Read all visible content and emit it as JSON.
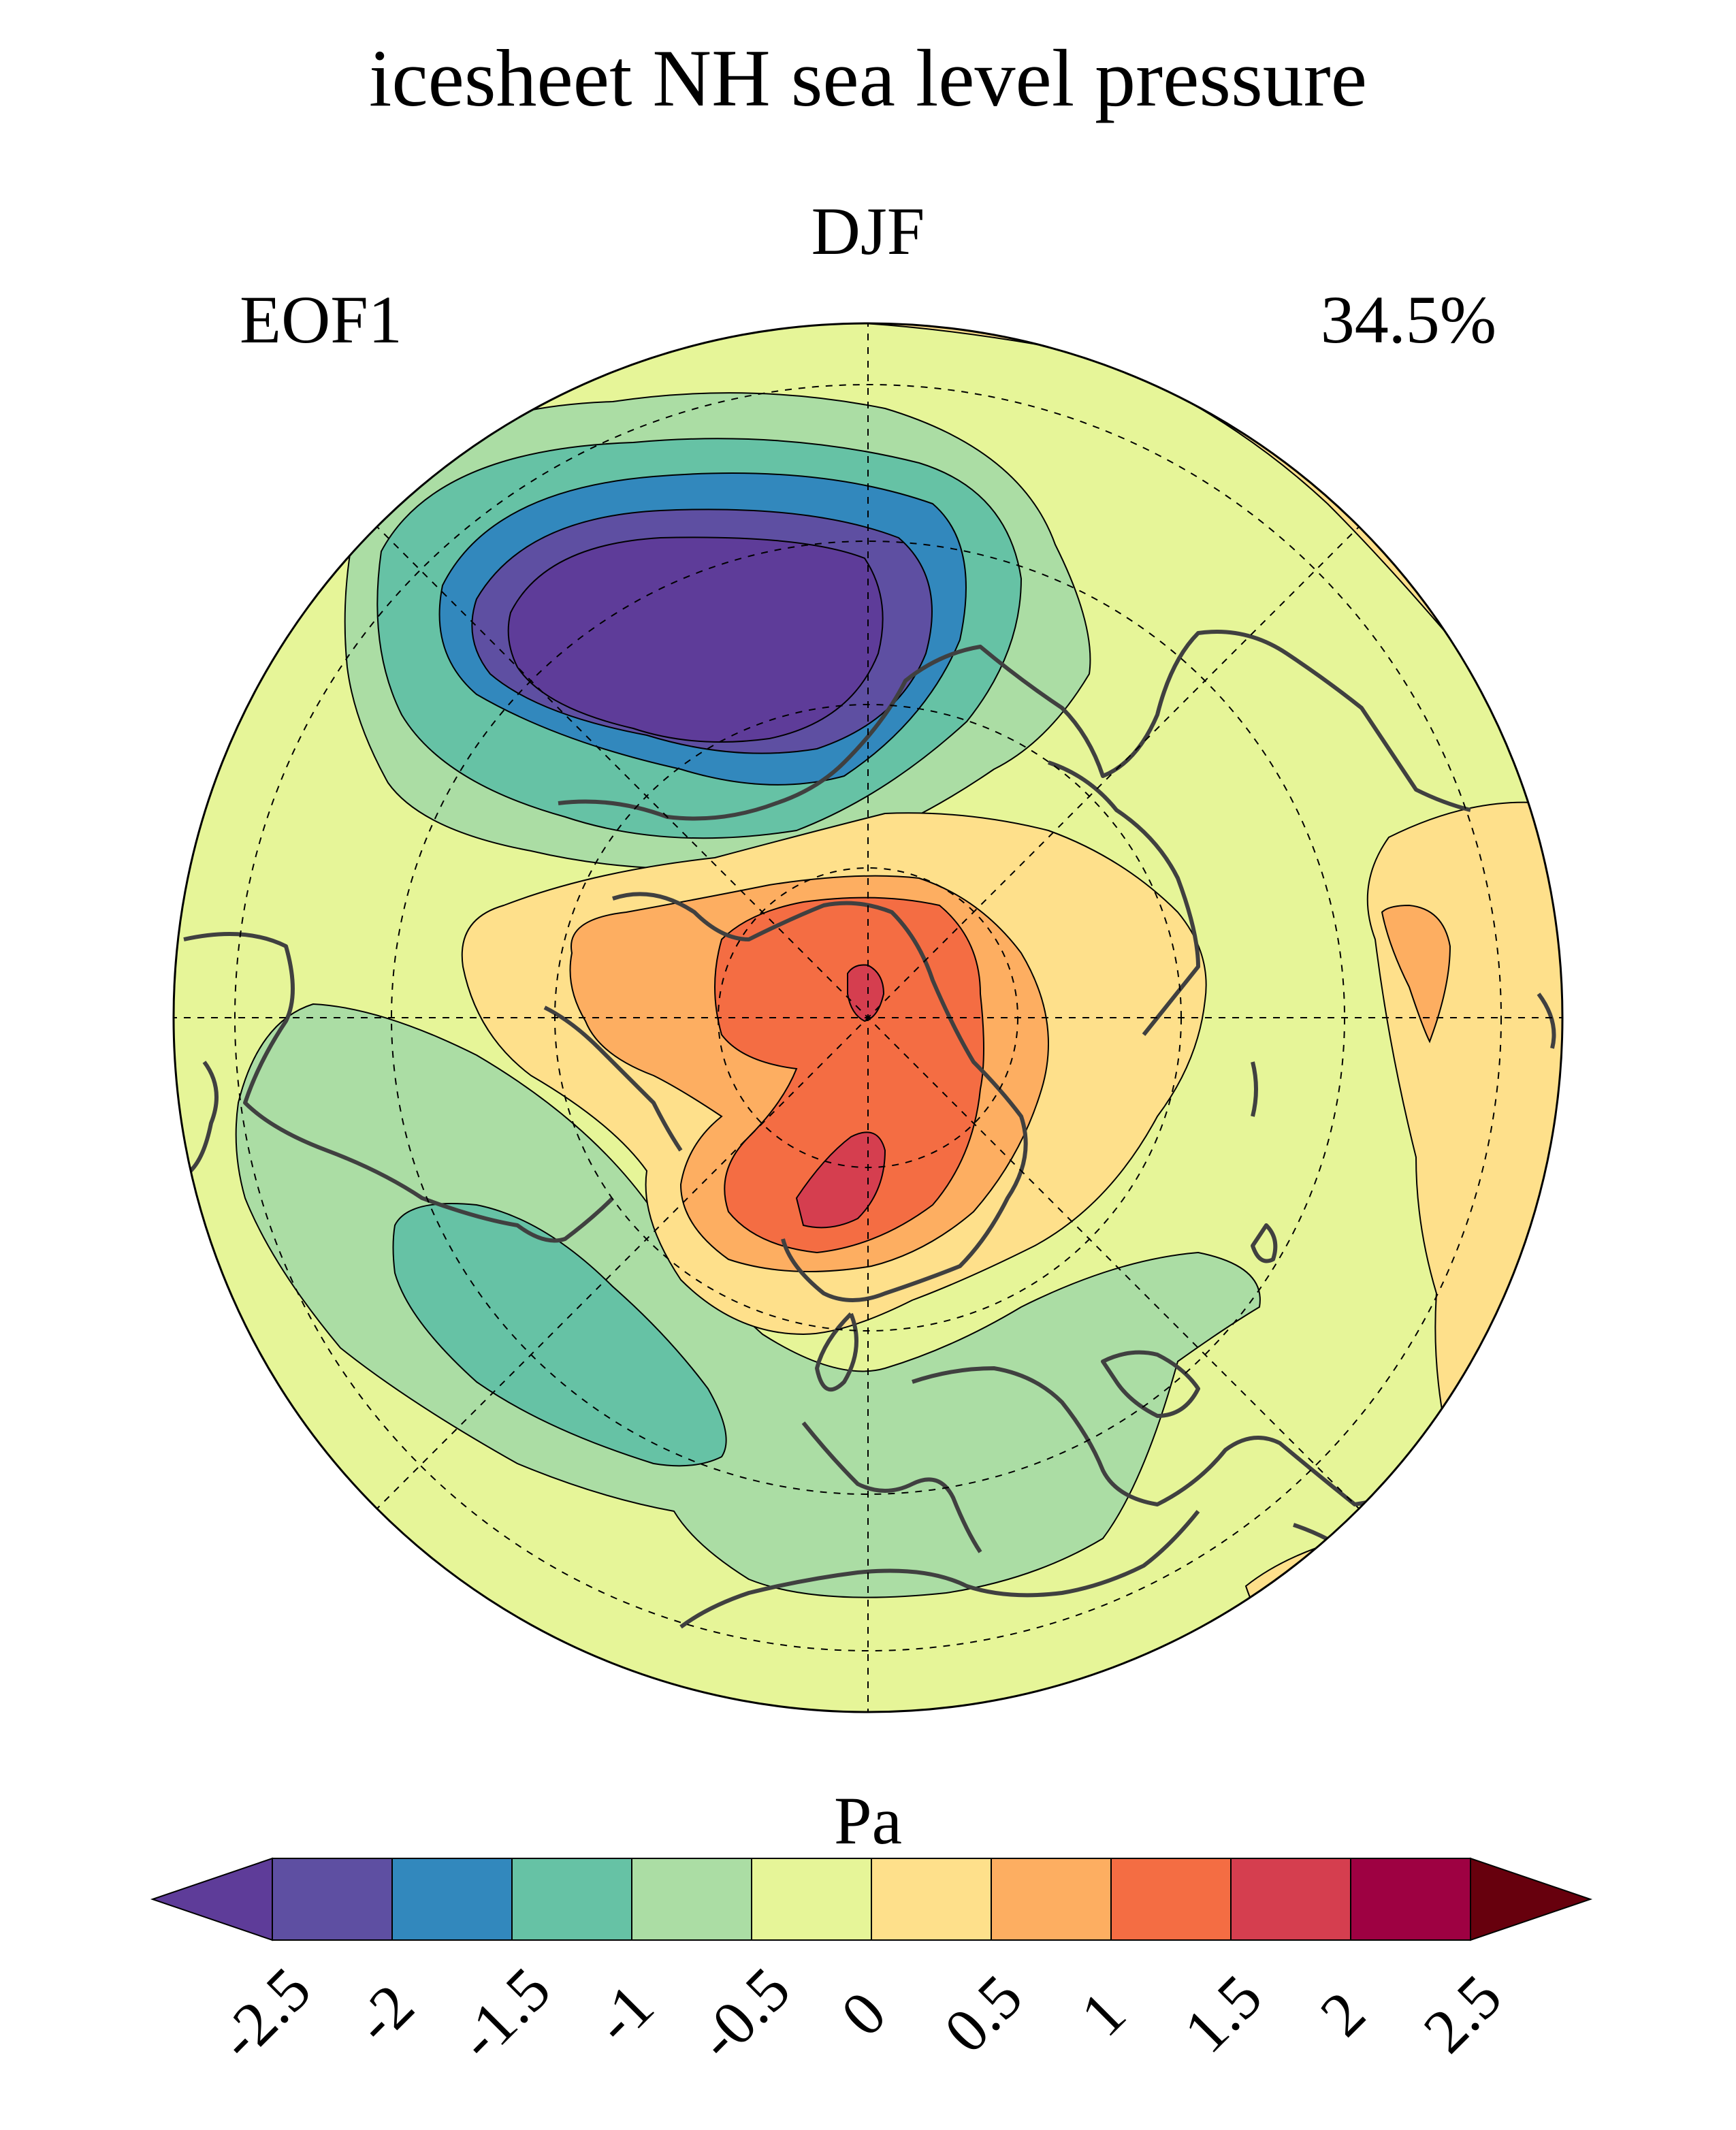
{
  "title": "icesheet NH sea level pressure",
  "season": "DJF",
  "mode": "EOF1",
  "variance_explained": "34.5%",
  "colorbar": {
    "units": "Pa",
    "tick_labels": [
      "-2.5",
      "-2",
      "-1.5",
      "-1",
      "-0.5",
      "0",
      "0.5",
      "1",
      "1.5",
      "2",
      "2.5"
    ],
    "colors": [
      "#5e3c99",
      "#5e4fa2",
      "#3288bd",
      "#66c2a5",
      "#abdda4",
      "#e6f598",
      "#fee08b",
      "#fdae61",
      "#f46d43",
      "#d53e4f",
      "#9e0142",
      "#67000d"
    ],
    "extend": "both"
  },
  "map": {
    "projection": "north-polar-stereographic",
    "background_color": "#e6f598",
    "features": [
      "coastlines",
      "graticule"
    ]
  }
}
